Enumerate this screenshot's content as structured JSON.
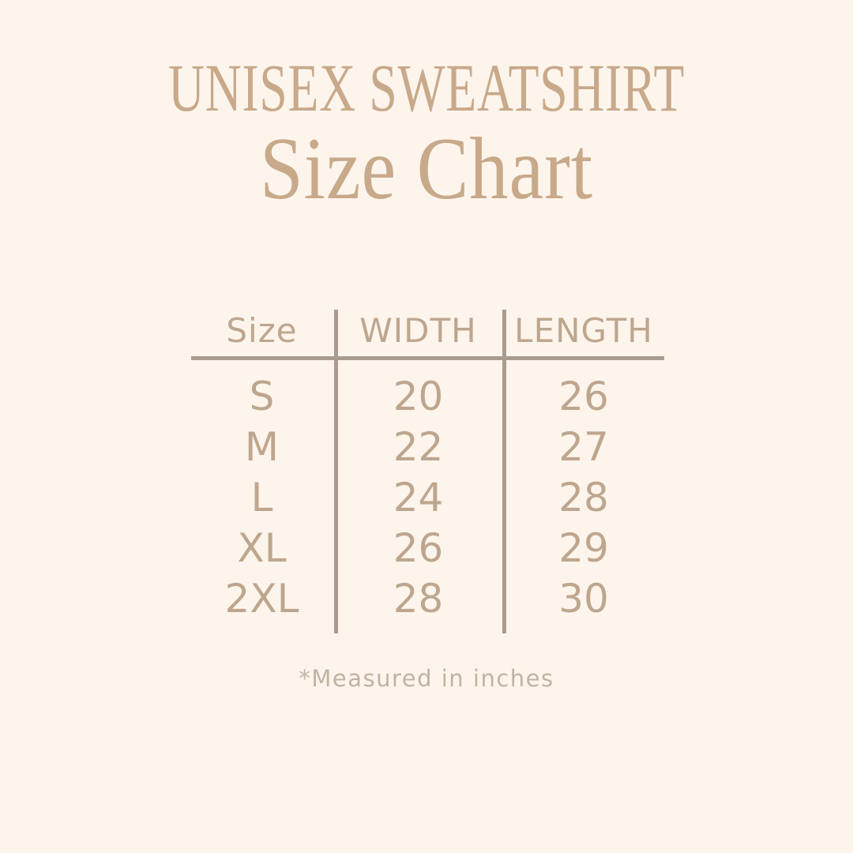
{
  "header": {
    "title": "UNISEX SWEATSHIRT",
    "subtitle": "Size Chart"
  },
  "table": {
    "headers": {
      "size": "Size",
      "width": "WIDTH",
      "length": "LENGTH"
    },
    "rows": [
      {
        "size": "S",
        "width": "20",
        "length": "26"
      },
      {
        "size": "M",
        "width": "22",
        "length": "27"
      },
      {
        "size": "L",
        "width": "24",
        "length": "28"
      },
      {
        "size": "XL",
        "width": "26",
        "length": "29"
      },
      {
        "size": "2XL",
        "width": "28",
        "length": "30"
      }
    ]
  },
  "footnote": {
    "text": "*Measured in inches"
  },
  "colors": {
    "background": "#FDF5EC",
    "title_text": "#C8A98A",
    "table_text": "#BEA68E",
    "divider_lines": "#A99C8F",
    "footnote_text": "#C2B2A2"
  },
  "chart_data": {
    "type": "table",
    "title": "UNISEX SWEATSHIRT Size Chart",
    "columns": [
      "Size",
      "WIDTH",
      "LENGTH"
    ],
    "rows": [
      [
        "S",
        20,
        26
      ],
      [
        "M",
        22,
        27
      ],
      [
        "L",
        24,
        28
      ],
      [
        "XL",
        26,
        29
      ],
      [
        "2XL",
        28,
        30
      ]
    ],
    "units": "inches",
    "footnote": "*Measured in inches"
  }
}
